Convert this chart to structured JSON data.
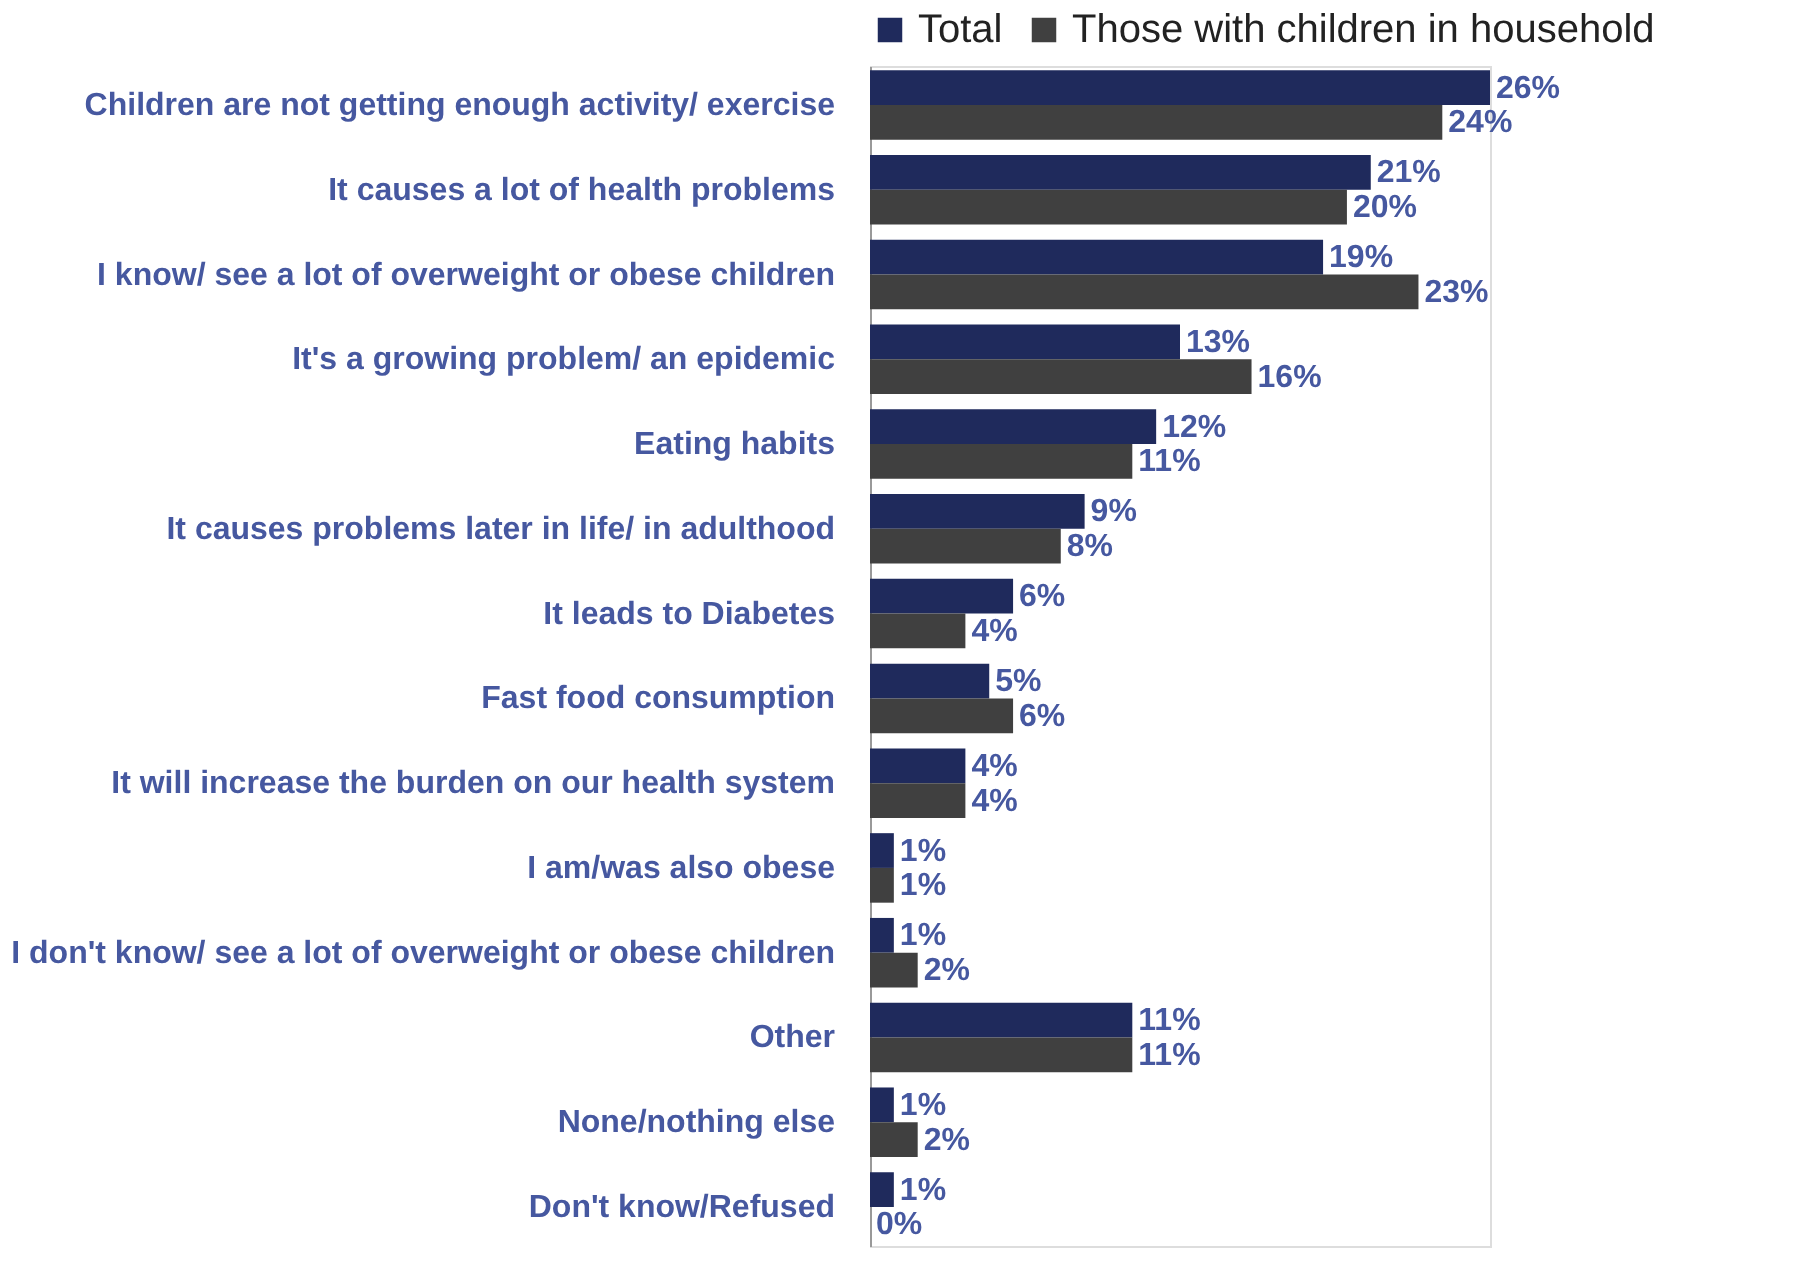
{
  "chart_data": {
    "type": "bar",
    "orientation": "horizontal",
    "categories": [
      "Children are not getting enough activity/ exercise",
      "It causes a lot of health problems",
      "I know/ see a lot of overweight or obese children",
      "It's a growing problem/ an epidemic",
      "Eating habits",
      "It causes problems later in life/ in adulthood",
      "It leads to Diabetes",
      "Fast food consumption",
      "It will increase the burden on our health system",
      "I am/was also obese",
      "I don't know/ see a lot of overweight or obese children",
      "Other",
      "None/nothing else",
      "Don't know/Refused"
    ],
    "series": [
      {
        "name": "Total",
        "color": "#1f2a5c",
        "values": [
          26,
          21,
          19,
          13,
          12,
          9,
          6,
          5,
          4,
          1,
          1,
          11,
          1,
          1
        ],
        "value_labels": [
          "26%",
          "21%",
          "19%",
          "13%",
          "12%",
          "9%",
          "6%",
          "5%",
          "4%",
          "1%",
          "1%",
          "11%",
          "1%",
          "1%"
        ]
      },
      {
        "name": "Those with children in household",
        "color": "#404040",
        "values": [
          24,
          20,
          23,
          16,
          11,
          8,
          4,
          6,
          4,
          1,
          2,
          11,
          2,
          0
        ],
        "value_labels": [
          "24%",
          "20%",
          "23%",
          "16%",
          "11%",
          "8%",
          "4%",
          "6%",
          "4%",
          "1%",
          "2%",
          "11%",
          "2%",
          "0%"
        ]
      }
    ],
    "legend": "top right",
    "grid": false
  }
}
